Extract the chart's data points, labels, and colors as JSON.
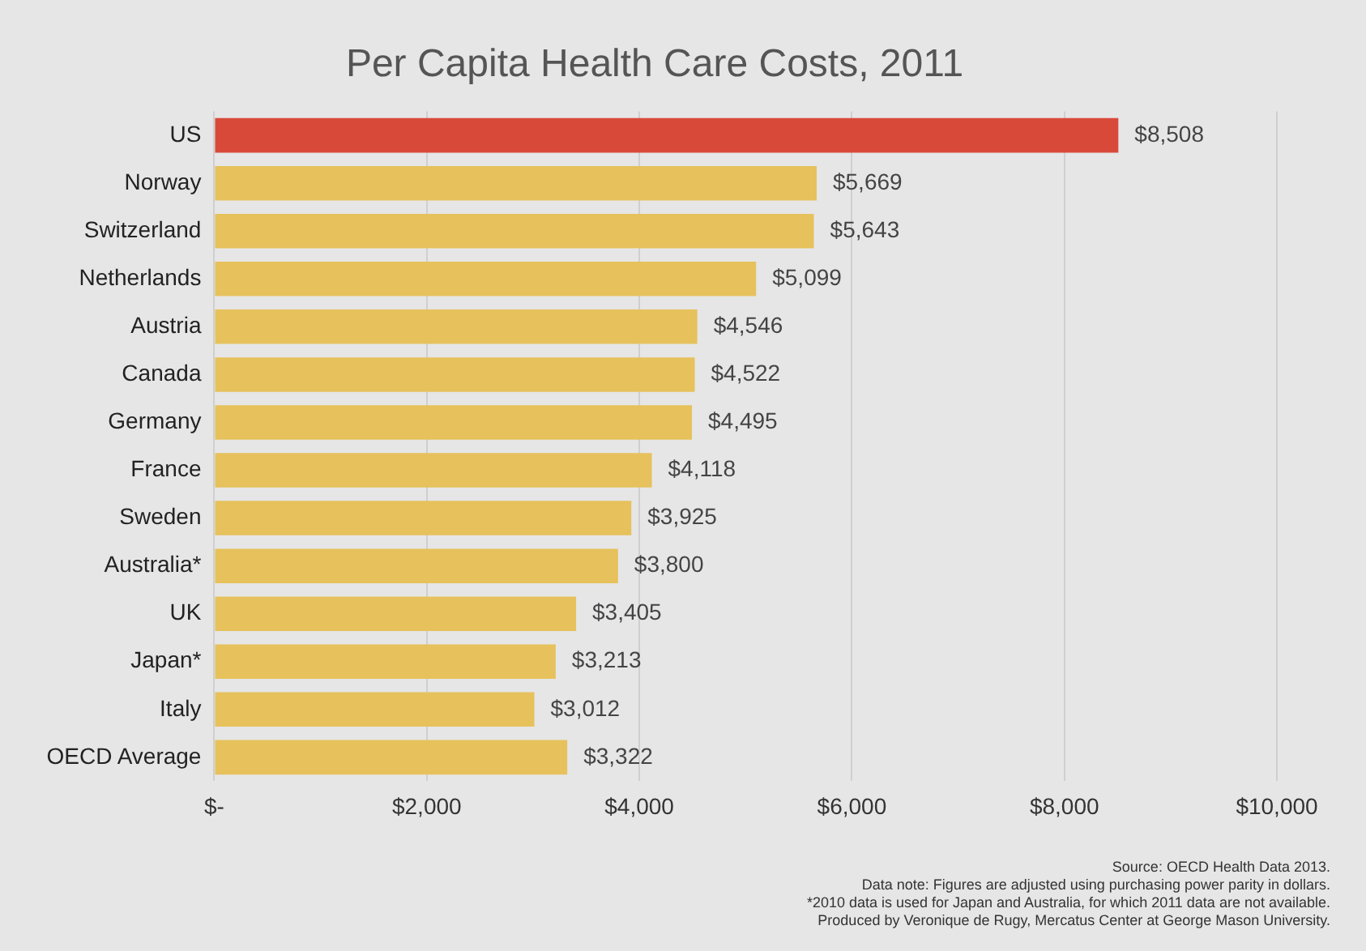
{
  "chart_data": {
    "type": "bar",
    "orientation": "horizontal",
    "title": "Per Capita Health Care Costs, 2011",
    "categories": [
      "US",
      "Norway",
      "Switzerland",
      "Netherlands",
      "Austria",
      "Canada",
      "Germany",
      "France",
      "Sweden",
      "Australia*",
      "UK",
      "Japan*",
      "Italy",
      "OECD Average"
    ],
    "values": [
      8508,
      5669,
      5643,
      5099,
      4546,
      4522,
      4495,
      4118,
      3925,
      3800,
      3405,
      3213,
      3012,
      3322
    ],
    "value_labels": [
      "$8,508",
      "$5,669",
      "$5,643",
      "$5,099",
      "$4,546",
      "$4,522",
      "$4,495",
      "$4,118",
      "$3,925",
      "$3,800",
      "$3,405",
      "$3,213",
      "$3,012",
      "$3,322"
    ],
    "colors": [
      "#d9493a",
      "#e6c15c",
      "#e6c15c",
      "#e6c15c",
      "#e6c15c",
      "#e6c15c",
      "#e6c15c",
      "#e6c15c",
      "#e6c15c",
      "#e6c15c",
      "#e6c15c",
      "#e6c15c",
      "#e6c15c",
      "#e6c15c"
    ],
    "xlim": [
      0,
      10000
    ],
    "xticks": [
      {
        "value": 0,
        "label": "$-"
      },
      {
        "value": 2000,
        "label": "$2,000"
      },
      {
        "value": 4000,
        "label": "$4,000"
      },
      {
        "value": 6000,
        "label": "$6,000"
      },
      {
        "value": 8000,
        "label": "$8,000"
      },
      {
        "value": 10000,
        "label": "$10,000"
      }
    ],
    "grid": "x",
    "legend": false,
    "annotations": [
      "Source: OECD Health Data 2013.",
      "Data note: Figures are adjusted using purchasing power parity in dollars.",
      "*2010 data is used for Japan and Australia, for which 2011 data are not available.",
      "Produced by Veronique de Rugy, Mercatus Center at George Mason University."
    ]
  }
}
